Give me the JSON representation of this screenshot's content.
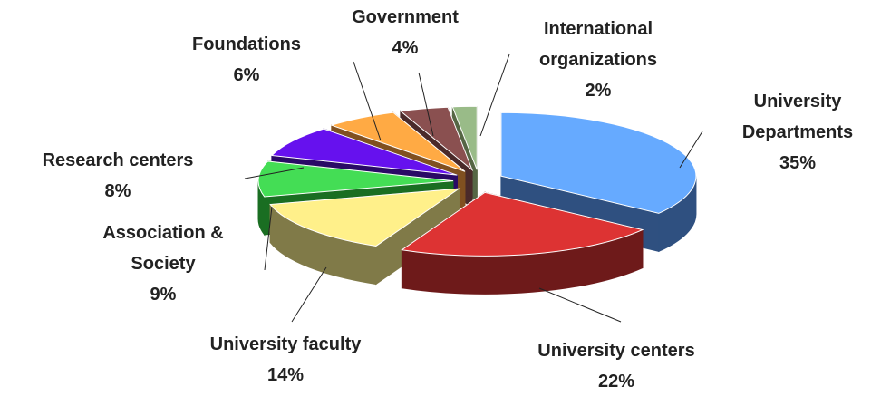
{
  "chart_data": {
    "type": "pie",
    "categories": [
      "University Departments",
      "University centers",
      "University faculty",
      "Association & Society",
      "Research centers",
      "Foundations",
      "Government",
      "International organizations"
    ],
    "values": [
      35,
      22,
      14,
      9,
      8,
      6,
      4,
      2
    ],
    "value_labels": [
      "35%",
      "22%",
      "14%",
      "9%",
      "8%",
      "6%",
      "4%",
      "2%"
    ],
    "colors": [
      "#66aaff",
      "#dd3333",
      "#fff08a",
      "#44dd55",
      "#6611ee",
      "#ffaa44",
      "#8a5050",
      "#99bb88"
    ],
    "side_colors": [
      "#2f5080",
      "#6e1a1a",
      "#807a48",
      "#1a6e22",
      "#2a0a66",
      "#805020",
      "#4a2a2a",
      "#556644"
    ]
  }
}
